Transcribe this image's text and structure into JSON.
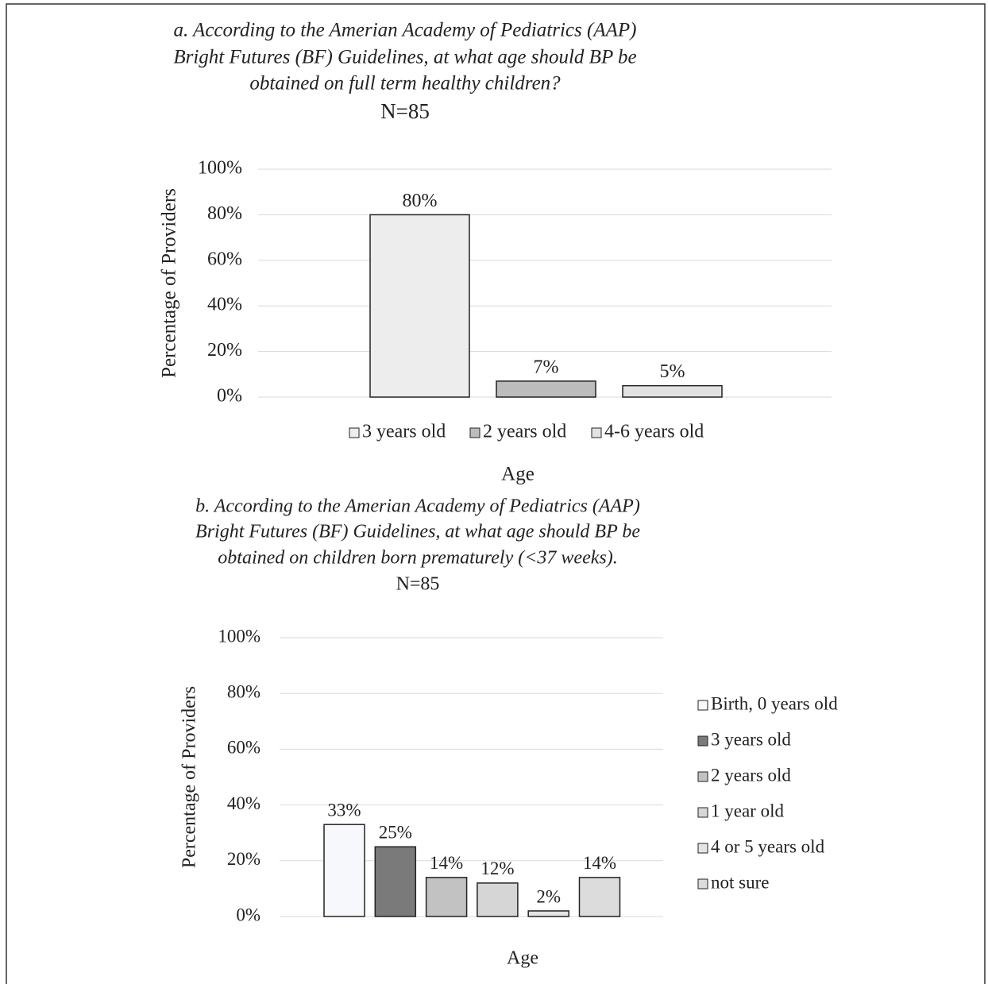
{
  "chart_data": [
    {
      "type": "bar",
      "title": [
        "a. According to the Amerian Academy of Pediatrics (AAP)",
        "Bright Futures (BF) Guidelines, at what age should BP be",
        "obtained on full term healthy children?"
      ],
      "subtitle": "N=85",
      "x_label": "Age",
      "y_label": "Percentage of Providers",
      "ylim": [
        0,
        100
      ],
      "yticks": [
        {
          "value": 0,
          "label": "0%"
        },
        {
          "value": 20,
          "label": "20%"
        },
        {
          "value": 40,
          "label": "40%"
        },
        {
          "value": 60,
          "label": "60%"
        },
        {
          "value": 80,
          "label": "80%"
        },
        {
          "value": 100,
          "label": "100%"
        }
      ],
      "grid": true,
      "legend": "bottom",
      "series": [
        {
          "name": "3 years old",
          "color": "#ededed",
          "values": [
            80
          ],
          "value_labels": [
            "80%"
          ]
        },
        {
          "name": "2 years old",
          "color": "#bcbcbc",
          "values": [
            7
          ],
          "value_labels": [
            "7%"
          ]
        },
        {
          "name": "4-6 years old",
          "color": "#e2e2e2",
          "values": [
            5
          ],
          "value_labels": [
            "5%"
          ]
        }
      ]
    },
    {
      "type": "bar",
      "title": [
        "b. According to the Amerian Academy of Pediatrics (AAP)",
        "Bright Futures (BF) Guidelines, at what age should BP be",
        "obtained on children born prematurely (<37 weeks)."
      ],
      "subtitle": "N=85",
      "x_label": "Age",
      "y_label": "Percentage of Providers",
      "ylim": [
        0,
        100
      ],
      "yticks": [
        {
          "value": 0,
          "label": "0%"
        },
        {
          "value": 20,
          "label": "20%"
        },
        {
          "value": 40,
          "label": "40%"
        },
        {
          "value": 60,
          "label": "60%"
        },
        {
          "value": 80,
          "label": "80%"
        },
        {
          "value": 100,
          "label": "100%"
        }
      ],
      "grid": true,
      "legend": "right",
      "series": [
        {
          "name": "Birth, 0 years old",
          "color": "#f6f8fb",
          "values": [
            33
          ],
          "value_labels": [
            "33%"
          ]
        },
        {
          "name": "3 years old",
          "color": "#7a7a7a",
          "values": [
            25
          ],
          "value_labels": [
            "25%"
          ]
        },
        {
          "name": "2 years old",
          "color": "#c2c2c2",
          "values": [
            14
          ],
          "value_labels": [
            "14%"
          ]
        },
        {
          "name": "1 year old",
          "color": "#d6d6d6",
          "values": [
            12
          ],
          "value_labels": [
            "12%"
          ]
        },
        {
          "name": "4 or 5 years old",
          "color": "#e4e4e4",
          "values": [
            2
          ],
          "value_labels": [
            "2%"
          ]
        },
        {
          "name": "not sure",
          "color": "#dcdcdc",
          "values": [
            14
          ],
          "value_labels": [
            "14%"
          ]
        }
      ]
    }
  ]
}
